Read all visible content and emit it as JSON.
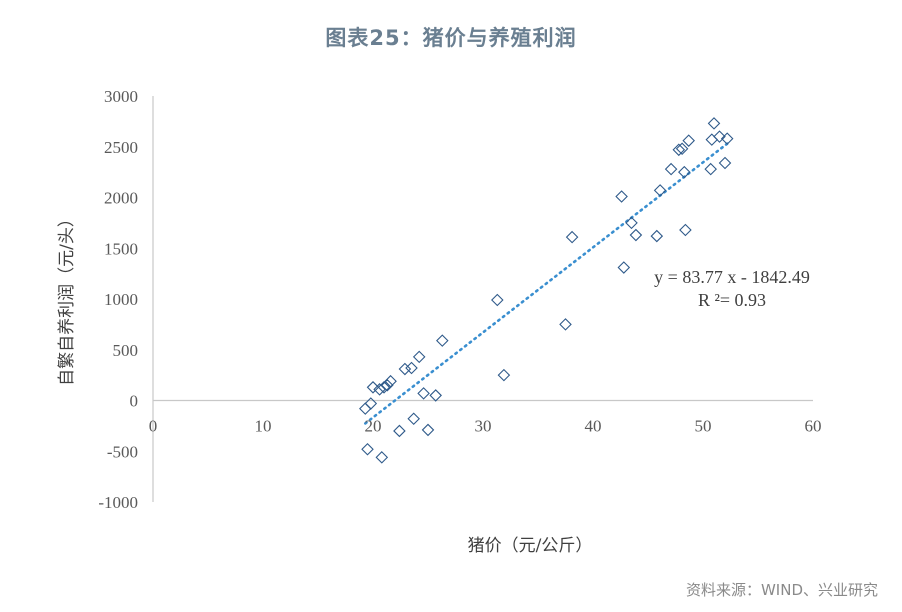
{
  "title": "图表25：猪价与养殖利润",
  "source": "资料来源：WIND、兴业研究",
  "colors": {
    "marker": "#2f5a8a",
    "trendline": "#3a8fd0",
    "axis": "#c8c8c8",
    "title": "#6a7f91"
  },
  "chart_data": {
    "type": "scatter",
    "xlabel": "猪价（元/公斤）",
    "ylabel": "自繁自养利润（元/头）",
    "xlim": [
      0,
      60
    ],
    "ylim": [
      -1000,
      3000
    ],
    "x_ticks": [
      "0",
      "10",
      "20",
      "30",
      "40",
      "50",
      "60"
    ],
    "y_ticks": [
      "3000",
      "2500",
      "2000",
      "1500",
      "1000",
      "500",
      "0",
      "-500",
      "-1000"
    ],
    "marker": "diamond",
    "trendline": {
      "type": "linear",
      "slope": 83.77,
      "intercept": -1842.49,
      "equation": "y = 83.77 x - 1842.49",
      "r_squared": "R ²= 0.93"
    },
    "points": [
      {
        "x": 19.3,
        "y": -80
      },
      {
        "x": 19.5,
        "y": -480
      },
      {
        "x": 19.8,
        "y": -30
      },
      {
        "x": 20.0,
        "y": 130
      },
      {
        "x": 20.6,
        "y": 110
      },
      {
        "x": 20.8,
        "y": -560
      },
      {
        "x": 21.0,
        "y": 130
      },
      {
        "x": 21.3,
        "y": 150
      },
      {
        "x": 21.6,
        "y": 190
      },
      {
        "x": 22.4,
        "y": -300
      },
      {
        "x": 22.9,
        "y": 310
      },
      {
        "x": 23.5,
        "y": 320
      },
      {
        "x": 23.7,
        "y": -180
      },
      {
        "x": 24.2,
        "y": 430
      },
      {
        "x": 24.6,
        "y": 70
      },
      {
        "x": 25.0,
        "y": -290
      },
      {
        "x": 25.7,
        "y": 50
      },
      {
        "x": 26.3,
        "y": 590
      },
      {
        "x": 31.3,
        "y": 990
      },
      {
        "x": 31.9,
        "y": 250
      },
      {
        "x": 37.5,
        "y": 750
      },
      {
        "x": 38.1,
        "y": 1610
      },
      {
        "x": 42.6,
        "y": 2010
      },
      {
        "x": 42.8,
        "y": 1310
      },
      {
        "x": 43.5,
        "y": 1750
      },
      {
        "x": 43.9,
        "y": 1630
      },
      {
        "x": 45.8,
        "y": 1620
      },
      {
        "x": 46.1,
        "y": 2070
      },
      {
        "x": 47.1,
        "y": 2280
      },
      {
        "x": 47.8,
        "y": 2470
      },
      {
        "x": 48.1,
        "y": 2480
      },
      {
        "x": 48.3,
        "y": 2250
      },
      {
        "x": 48.4,
        "y": 1680
      },
      {
        "x": 48.7,
        "y": 2560
      },
      {
        "x": 50.7,
        "y": 2280
      },
      {
        "x": 50.8,
        "y": 2570
      },
      {
        "x": 51.0,
        "y": 2730
      },
      {
        "x": 51.5,
        "y": 2600
      },
      {
        "x": 52.0,
        "y": 2340
      },
      {
        "x": 52.2,
        "y": 2580
      }
    ]
  }
}
